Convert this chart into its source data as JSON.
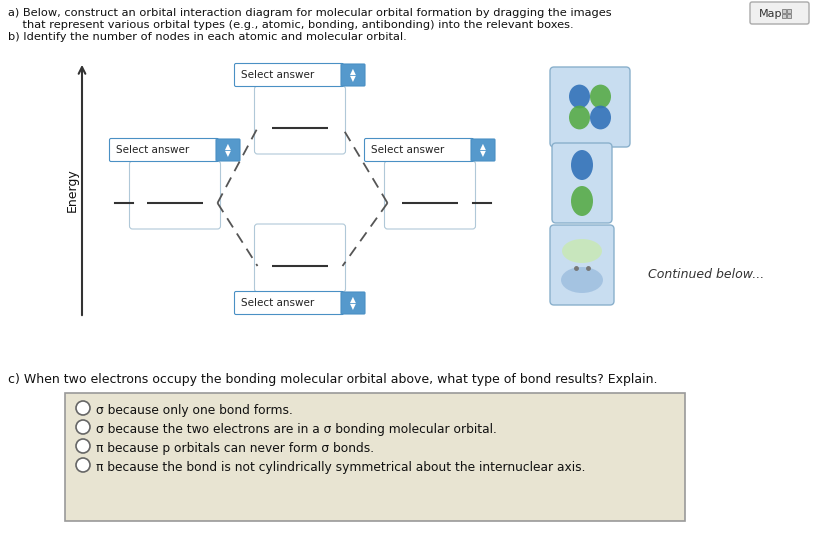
{
  "title_a": "a) Below, construct an orbital interaction diagram for molecular orbital formation by dragging the images",
  "title_a2": "    that represent various orbital types (e.g., atomic, bonding, antibonding) into the relevant boxes.",
  "title_b": "b) Identify the number of nodes in each atomic and molecular orbital.",
  "map_label": "Map",
  "select_answer": "Select answer",
  "energy_label": "Energy",
  "continued_below": "Continued below...",
  "question_c": "c) When two electrons occupy the bonding molecular orbital above, what type of bond results? Explain.",
  "options": [
    "σ because only one bond forms.",
    "σ because the two electrons are in a σ bonding molecular orbital.",
    "π because p orbitals can never form σ bonds.",
    "π because the bond is not cylindrically symmetrical about the internuclear axis."
  ],
  "bg_color": "#ffffff",
  "box_fill": "#ffffff",
  "box_edge": "#b0c8d8",
  "orbital_box_fill": "#c8ddf0",
  "orbital_box_edge": "#8ab0cc",
  "select_bg": "#ddeeff",
  "select_border": "#4a90c4",
  "select_arrow_bg": "#5599cc",
  "dashed_color": "#555555",
  "options_bg": "#e8e4d2",
  "options_border": "#999999",
  "hline_color": "#333333",
  "energy_arrow_color": "#333333",
  "text_color": "#111111",
  "map_bg": "#f0f0f0",
  "map_border": "#aaaaaa"
}
